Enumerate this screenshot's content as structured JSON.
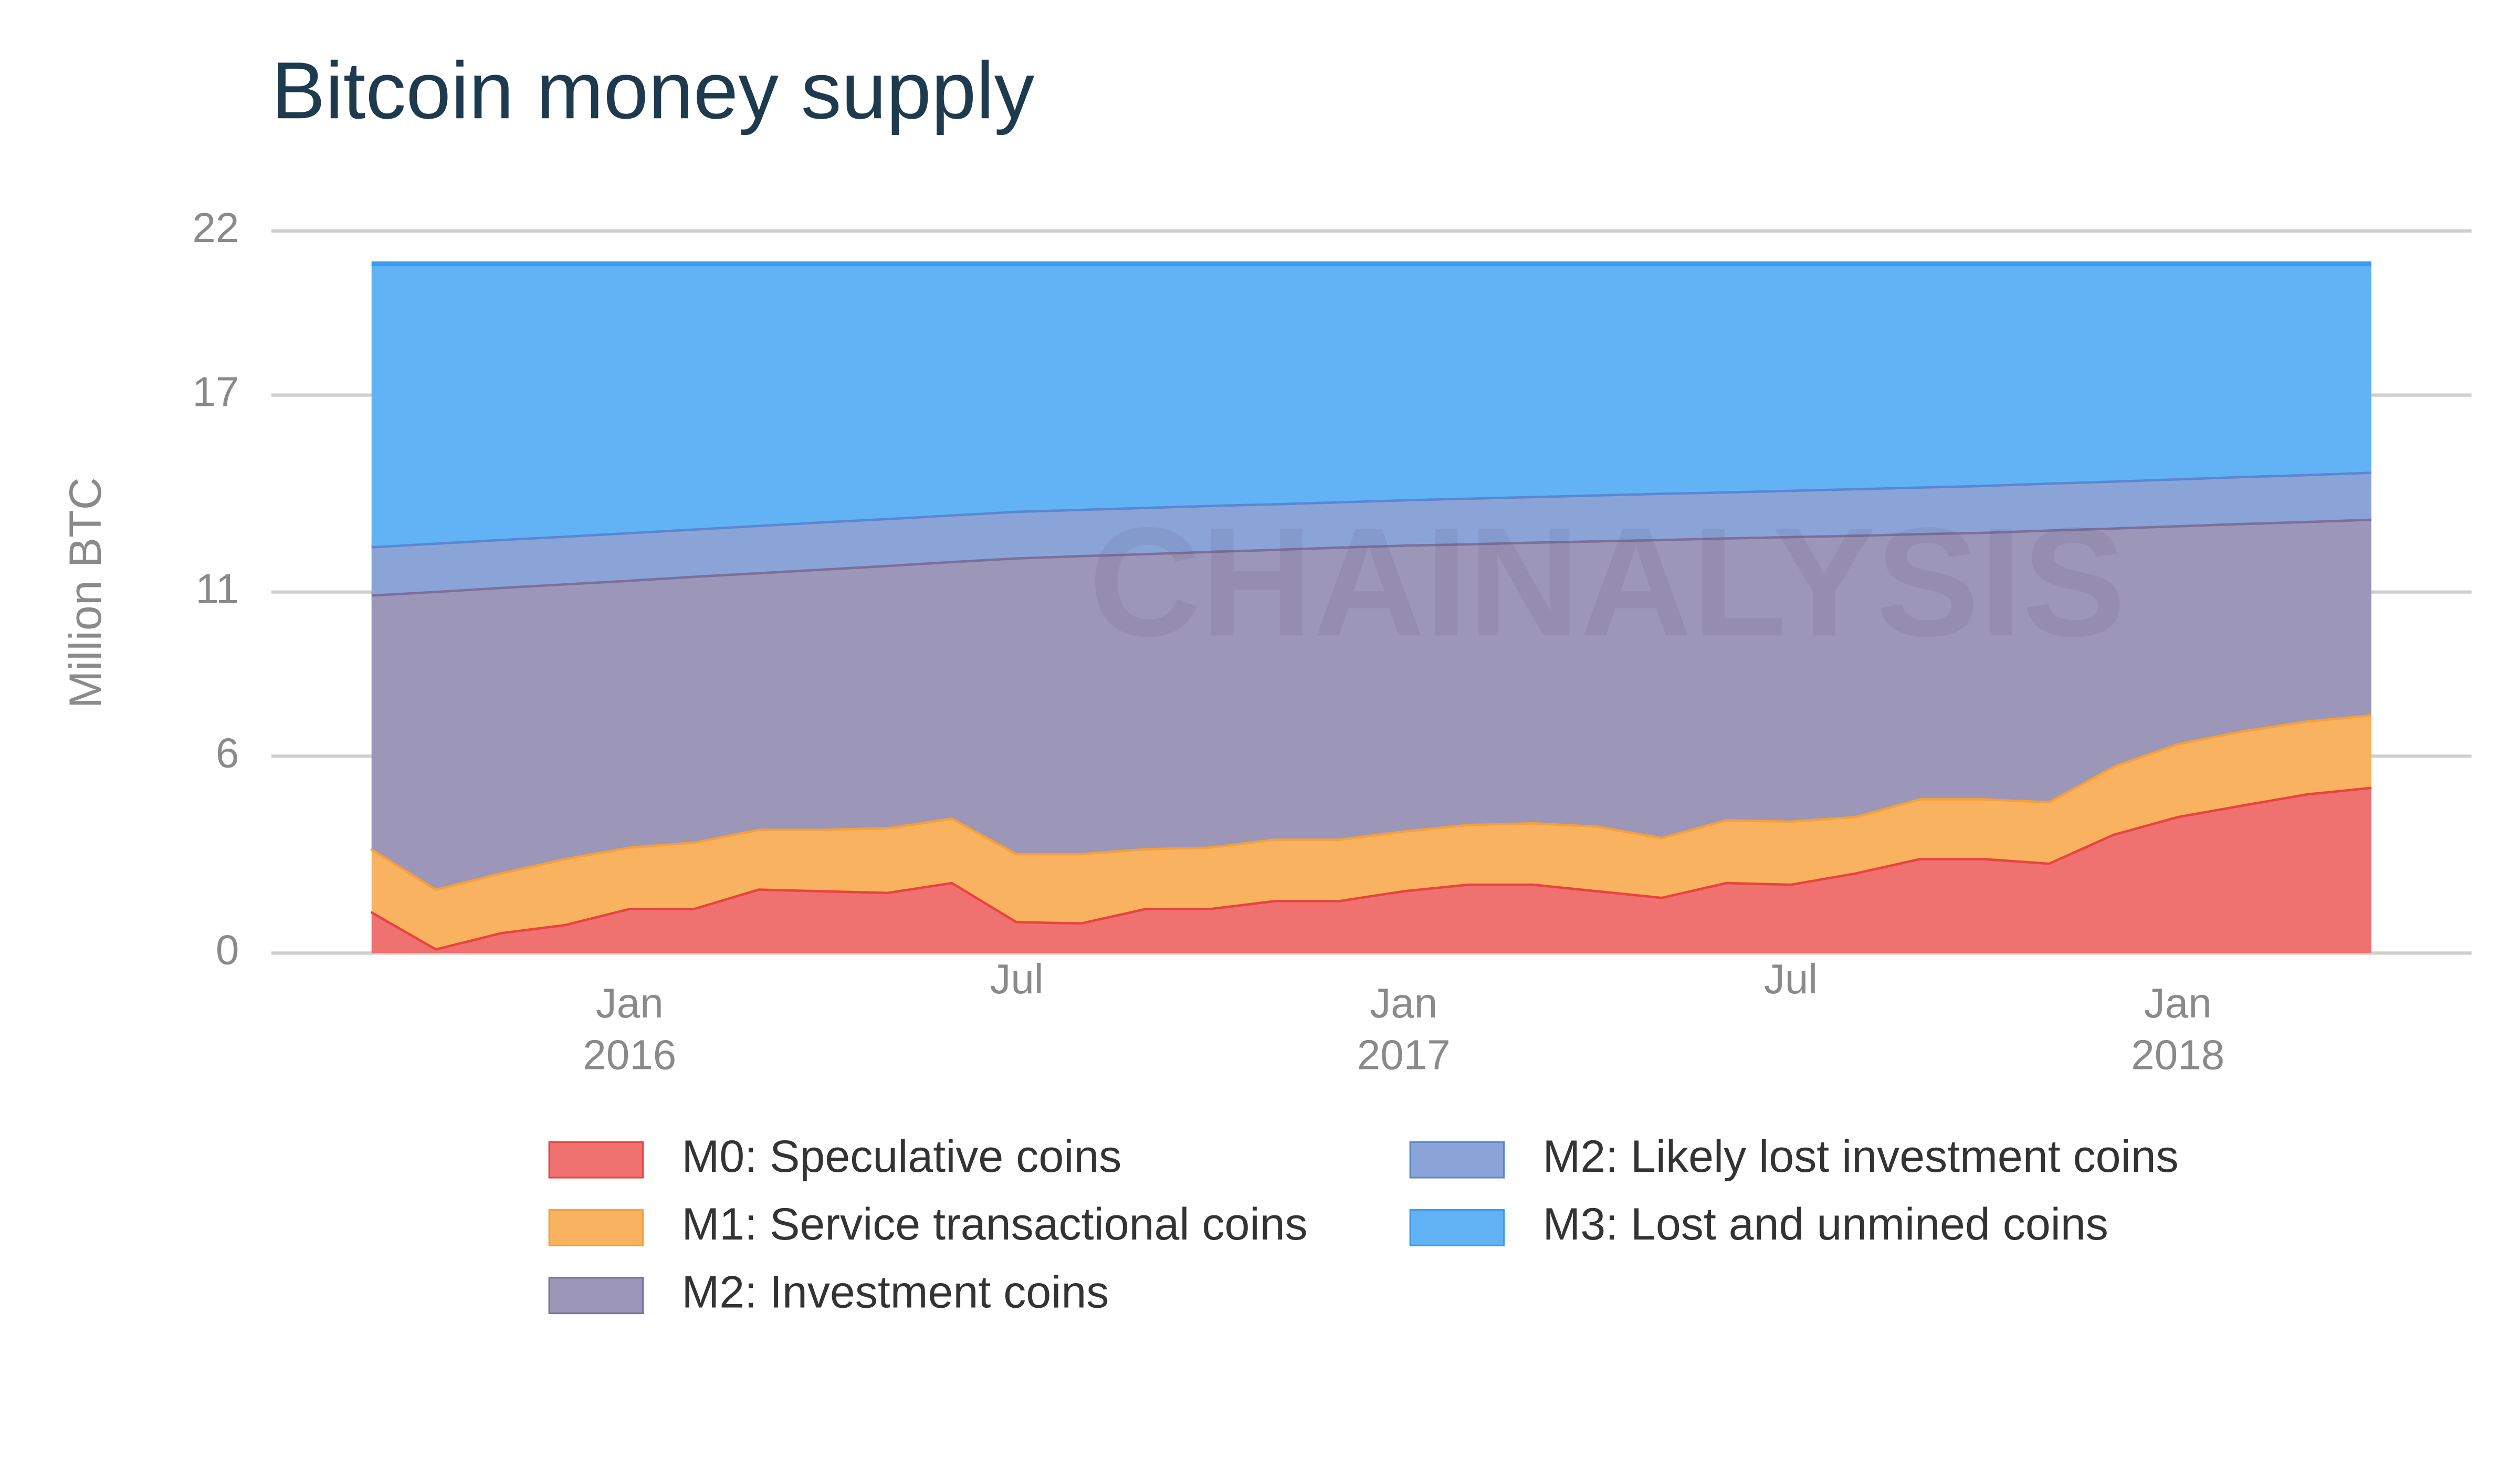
{
  "chart_data": {
    "type": "area",
    "stacked": true,
    "title": "Bitcoin money supply",
    "ylabel": "Million BTC",
    "watermark": "CHAINALYSIS",
    "x": [
      "2015-09",
      "2015-10",
      "2015-11",
      "2015-12",
      "2016-01",
      "2016-02",
      "2016-03",
      "2016-04",
      "2016-05",
      "2016-06",
      "2016-07",
      "2016-08",
      "2016-09",
      "2016-10",
      "2016-11",
      "2016-12",
      "2017-01",
      "2017-02",
      "2017-03",
      "2017-04",
      "2017-05",
      "2017-06",
      "2017-07",
      "2017-08",
      "2017-09",
      "2017-10",
      "2017-11",
      "2017-12",
      "2018-01",
      "2018-02",
      "2018-03",
      "2018-04"
    ],
    "xticks": [
      {
        "value": "2016-01",
        "label": [
          "Jan",
          "2016"
        ]
      },
      {
        "value": "2016-07",
        "label": [
          "Jul"
        ]
      },
      {
        "value": "2017-01",
        "label": [
          "Jan",
          "2017"
        ]
      },
      {
        "value": "2017-07",
        "label": [
          "Jul"
        ]
      },
      {
        "value": "2018-01",
        "label": [
          "Jan",
          "2018"
        ]
      }
    ],
    "ylim": [
      0,
      22
    ],
    "yticks": [
      0,
      6,
      11,
      17,
      22
    ],
    "grid": true,
    "legend": "bottom",
    "series": [
      {
        "name": "M0: Speculative coins",
        "color": "#ef7170",
        "line_color": "#e8443f",
        "values": [
          1.28,
          0.15,
          0.64,
          0.89,
          1.38,
          1.38,
          1.97,
          1.92,
          1.87,
          2.17,
          0.98,
          0.94,
          1.38,
          1.38,
          1.62,
          1.62,
          1.92,
          2.12,
          2.12,
          1.92,
          1.72,
          2.17,
          2.12,
          2.46,
          2.9,
          2.9,
          2.76,
          3.64,
          4.18,
          4.53,
          4.87,
          5.07
        ]
      },
      {
        "name": "M1: Service transactional coins",
        "color": "#f9b25f",
        "line_color": "#f5a03a",
        "values": [
          1.92,
          1.82,
          1.82,
          2.01,
          1.87,
          2.02,
          1.82,
          1.87,
          1.97,
          1.96,
          2.07,
          2.11,
          1.82,
          1.87,
          1.87,
          1.87,
          1.82,
          1.82,
          1.87,
          1.97,
          1.82,
          1.91,
          1.92,
          1.72,
          1.82,
          1.82,
          1.87,
          2.07,
          2.22,
          2.26,
          2.22,
          2.21
        ]
      },
      {
        "name": "M2: Investment coins",
        "color": "#9c96b8",
        "line_color": "#7c6f9b",
        "values": [
          7.73,
          9.07,
          8.7,
          8.37,
          8.13,
          8.1,
          7.82,
          7.93,
          7.99,
          7.82,
          9.01,
          9.08,
          8.99,
          9.01,
          8.83,
          8.9,
          8.71,
          8.55,
          8.55,
          8.69,
          9.08,
          8.59,
          8.67,
          8.57,
          8.08,
          8.12,
          8.28,
          7.26,
          6.64,
          6.32,
          6.08,
          5.96
        ]
      },
      {
        "name": "M2: Likely lost investment coins",
        "color": "#8ba4d8",
        "line_color": "#5b87d0",
        "values": [
          1.47,
          1.47,
          1.46,
          1.45,
          1.45,
          1.44,
          1.44,
          1.44,
          1.43,
          1.42,
          1.42,
          1.41,
          1.41,
          1.4,
          1.39,
          1.38,
          1.38,
          1.39,
          1.39,
          1.4,
          1.41,
          1.4,
          1.41,
          1.42,
          1.42,
          1.43,
          1.43,
          1.43,
          1.43,
          1.43,
          1.43,
          1.43
        ]
      },
      {
        "name": "M3: Lost and unmined coins",
        "color": "#62b3f5",
        "line_color": "#3a9bef",
        "values": [
          8.6,
          8.49,
          8.38,
          8.28,
          8.17,
          8.06,
          7.95,
          7.84,
          7.74,
          7.63,
          7.52,
          7.46,
          7.4,
          7.34,
          7.29,
          7.23,
          7.17,
          7.12,
          7.07,
          7.02,
          6.97,
          6.93,
          6.88,
          6.83,
          6.78,
          6.73,
          6.66,
          6.6,
          6.53,
          6.46,
          6.4,
          6.33
        ]
      }
    ]
  }
}
